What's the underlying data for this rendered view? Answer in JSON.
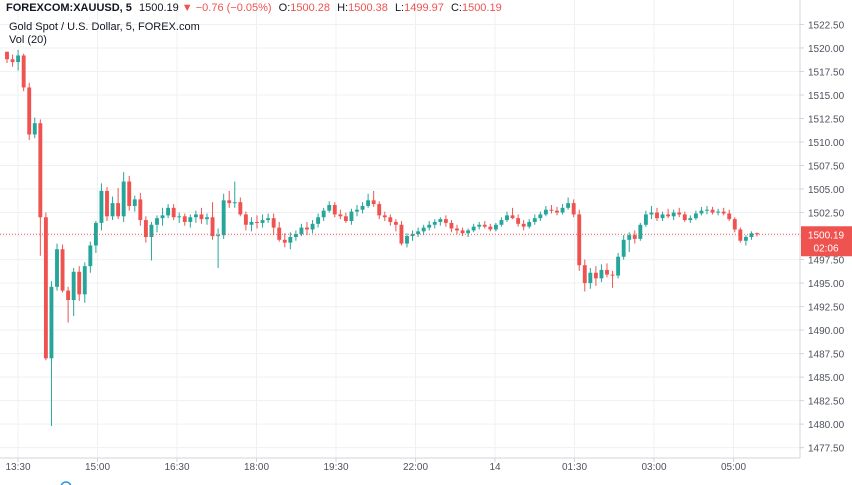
{
  "header": {
    "symbol": "FOREXCOM:XAUUSD, 5",
    "last": "1500.19",
    "change_arrow": "▼",
    "change": "−0.76 (−0.05%)",
    "o_label": "O:",
    "o": "1500.28",
    "h_label": "H:",
    "h": "1500.38",
    "l_label": "L:",
    "l": "1499.97",
    "c_label": "C:",
    "c": "1500.19",
    "title": "Gold Spot / U.S. Dollar, 5, FOREX.com",
    "indicator": "Vol (20)"
  },
  "colors": {
    "up": "#26a69a",
    "down": "#ef5350",
    "grid": "#eef0f3",
    "axis_text": "#50535e",
    "price_line": "#ef5350"
  },
  "chart_data": {
    "type": "candlestick",
    "interval": "5m",
    "grid": true,
    "price_axis_position": "right",
    "ylim": [
      1476.4,
      1525.1
    ],
    "y_ticks": [
      "1522.50",
      "1520.00",
      "1517.50",
      "1515.00",
      "1512.50",
      "1510.00",
      "1507.50",
      "1505.00",
      "1502.50",
      "1500.00",
      "1497.50",
      "1495.00",
      "1492.50",
      "1490.00",
      "1487.50",
      "1485.00",
      "1482.50",
      "1480.00",
      "1477.50"
    ],
    "x_ticks": [
      "13:30",
      "15:00",
      "16:30",
      "18:00",
      "19:30",
      "22:00",
      "14",
      "01:30",
      "03:00",
      "05:00"
    ],
    "last_price_label": "1500.19",
    "countdown_label": "02:06",
    "ohlc": [
      [
        1519.6,
        1519.6,
        1518.4,
        1518.8
      ],
      [
        1518.8,
        1519.3,
        1518.0,
        1518.5
      ],
      [
        1518.5,
        1519.8,
        1517.6,
        1519.2
      ],
      [
        1519.2,
        1519.4,
        1515.4,
        1515.8
      ],
      [
        1515.8,
        1516.3,
        1510.2,
        1510.8
      ],
      [
        1510.8,
        1512.6,
        1510.4,
        1512.0
      ],
      [
        1512.0,
        1512.4,
        1497.9,
        1502.0
      ],
      [
        1502.0,
        1502.5,
        1486.8,
        1487.0
      ],
      [
        1487.0,
        1495.2,
        1479.8,
        1494.6
      ],
      [
        1494.6,
        1499.2,
        1494.2,
        1498.6
      ],
      [
        1498.6,
        1499.1,
        1494.0,
        1494.2
      ],
      [
        1494.2,
        1494.6,
        1490.8,
        1493.2
      ],
      [
        1493.2,
        1496.6,
        1491.5,
        1496.2
      ],
      [
        1496.2,
        1496.8,
        1493.1,
        1493.8
      ],
      [
        1493.8,
        1497.2,
        1492.9,
        1496.8
      ],
      [
        1496.8,
        1499.4,
        1496.1,
        1499.0
      ],
      [
        1499.0,
        1501.6,
        1498.2,
        1501.4
      ],
      [
        1501.4,
        1505.6,
        1500.6,
        1504.8
      ],
      [
        1504.8,
        1505.2,
        1501.6,
        1502.1
      ],
      [
        1502.1,
        1504.2,
        1501.7,
        1503.5
      ],
      [
        1503.5,
        1505.1,
        1501.8,
        1502.1
      ],
      [
        1502.1,
        1506.8,
        1501.5,
        1505.8
      ],
      [
        1505.8,
        1506.4,
        1502.7,
        1503.2
      ],
      [
        1503.2,
        1504.3,
        1502.6,
        1503.9
      ],
      [
        1503.9,
        1504.6,
        1501.1,
        1501.7
      ],
      [
        1501.7,
        1502.1,
        1499.3,
        1499.9
      ],
      [
        1499.9,
        1501.5,
        1497.4,
        1501.2
      ],
      [
        1501.2,
        1502.2,
        1500.4,
        1501.9
      ],
      [
        1501.9,
        1503.0,
        1501.1,
        1502.2
      ],
      [
        1502.2,
        1503.4,
        1501.9,
        1503.0
      ],
      [
        1503.0,
        1503.4,
        1501.7,
        1502.0
      ],
      [
        1502.0,
        1502.5,
        1501.4,
        1502.1
      ],
      [
        1502.1,
        1502.4,
        1501.1,
        1501.5
      ],
      [
        1501.5,
        1502.3,
        1500.9,
        1502.0
      ],
      [
        1502.0,
        1502.7,
        1501.4,
        1502.3
      ],
      [
        1502.3,
        1503.0,
        1501.3,
        1501.8
      ],
      [
        1501.8,
        1502.4,
        1501.2,
        1502.0
      ],
      [
        1502.0,
        1503.6,
        1499.6,
        1500.0
      ],
      [
        1500.0,
        1500.8,
        1496.6,
        1500.1
      ],
      [
        1500.1,
        1504.5,
        1499.7,
        1503.8
      ],
      [
        1503.8,
        1504.8,
        1503.0,
        1503.5
      ],
      [
        1503.5,
        1505.8,
        1503.0,
        1503.6
      ],
      [
        1503.6,
        1504.1,
        1502.1,
        1502.3
      ],
      [
        1502.3,
        1502.6,
        1500.6,
        1501.2
      ],
      [
        1501.2,
        1502.0,
        1500.5,
        1501.5
      ],
      [
        1501.5,
        1502.2,
        1500.8,
        1501.4
      ],
      [
        1501.4,
        1502.3,
        1500.9,
        1501.7
      ],
      [
        1501.7,
        1502.4,
        1501.4,
        1501.9
      ],
      [
        1501.9,
        1502.4,
        1500.1,
        1500.9
      ],
      [
        1500.9,
        1501.5,
        1499.4,
        1499.6
      ],
      [
        1499.6,
        1500.3,
        1498.8,
        1499.3
      ],
      [
        1499.3,
        1500.4,
        1498.6,
        1499.9
      ],
      [
        1499.9,
        1500.6,
        1499.5,
        1500.2
      ],
      [
        1500.2,
        1501.3,
        1500.0,
        1500.9
      ],
      [
        1500.9,
        1501.5,
        1500.1,
        1500.7
      ],
      [
        1500.7,
        1501.7,
        1500.3,
        1501.3
      ],
      [
        1501.3,
        1502.4,
        1500.9,
        1502.0
      ],
      [
        1502.0,
        1503.0,
        1501.6,
        1502.7
      ],
      [
        1502.7,
        1503.7,
        1502.5,
        1503.3
      ],
      [
        1503.3,
        1503.6,
        1502.0,
        1502.3
      ],
      [
        1502.3,
        1502.8,
        1501.8,
        1502.1
      ],
      [
        1502.1,
        1502.5,
        1501.4,
        1501.6
      ],
      [
        1501.6,
        1502.9,
        1501.2,
        1502.6
      ],
      [
        1502.6,
        1503.3,
        1502.1,
        1502.8
      ],
      [
        1502.8,
        1503.6,
        1502.4,
        1503.2
      ],
      [
        1503.2,
        1504.5,
        1503.0,
        1503.8
      ],
      [
        1503.8,
        1504.8,
        1503.1,
        1503.4
      ],
      [
        1503.4,
        1503.7,
        1501.8,
        1502.2
      ],
      [
        1502.2,
        1502.6,
        1501.6,
        1502.0
      ],
      [
        1502.0,
        1502.3,
        1501.1,
        1501.5
      ],
      [
        1501.5,
        1501.8,
        1500.5,
        1501.2
      ],
      [
        1501.2,
        1501.6,
        1499.0,
        1499.2
      ],
      [
        1499.2,
        1500.3,
        1498.8,
        1500.0
      ],
      [
        1500.0,
        1500.6,
        1499.5,
        1500.2
      ],
      [
        1500.2,
        1500.9,
        1499.9,
        1500.5
      ],
      [
        1500.5,
        1501.2,
        1500.1,
        1500.9
      ],
      [
        1500.9,
        1501.6,
        1500.6,
        1501.2
      ],
      [
        1501.2,
        1501.8,
        1500.8,
        1501.5
      ],
      [
        1501.5,
        1502.0,
        1501.1,
        1501.8
      ],
      [
        1501.8,
        1502.2,
        1501.0,
        1501.4
      ],
      [
        1501.4,
        1501.7,
        1500.4,
        1500.8
      ],
      [
        1500.8,
        1501.2,
        1500.2,
        1500.6
      ],
      [
        1500.6,
        1500.9,
        1500.0,
        1500.3
      ],
      [
        1500.3,
        1500.8,
        1499.9,
        1500.6
      ],
      [
        1500.6,
        1501.3,
        1500.4,
        1501.0
      ],
      [
        1501.0,
        1501.5,
        1500.7,
        1501.2
      ],
      [
        1501.2,
        1501.6,
        1500.8,
        1501.0
      ],
      [
        1501.0,
        1501.3,
        1500.5,
        1500.7
      ],
      [
        1500.7,
        1501.4,
        1500.5,
        1501.2
      ],
      [
        1501.2,
        1502.0,
        1501.0,
        1501.7
      ],
      [
        1501.7,
        1502.6,
        1501.5,
        1502.2
      ],
      [
        1502.2,
        1503.0,
        1501.8,
        1501.9
      ],
      [
        1501.9,
        1502.3,
        1501.0,
        1501.3
      ],
      [
        1501.3,
        1501.7,
        1500.6,
        1501.0
      ],
      [
        1501.0,
        1501.8,
        1500.8,
        1501.5
      ],
      [
        1501.5,
        1502.3,
        1501.2,
        1501.9
      ],
      [
        1501.9,
        1502.6,
        1501.6,
        1502.3
      ],
      [
        1502.3,
        1503.2,
        1502.1,
        1502.8
      ],
      [
        1502.8,
        1503.3,
        1502.4,
        1502.7
      ],
      [
        1502.7,
        1503.1,
        1502.2,
        1502.5
      ],
      [
        1502.5,
        1503.4,
        1502.3,
        1503.0
      ],
      [
        1503.0,
        1504.1,
        1502.8,
        1503.5
      ],
      [
        1503.5,
        1503.9,
        1502.0,
        1502.3
      ],
      [
        1502.3,
        1502.8,
        1496.3,
        1496.9
      ],
      [
        1496.9,
        1497.5,
        1494.1,
        1495.0
      ],
      [
        1495.0,
        1496.6,
        1494.4,
        1496.1
      ],
      [
        1496.1,
        1496.8,
        1494.7,
        1495.5
      ],
      [
        1495.5,
        1497.0,
        1495.1,
        1496.4
      ],
      [
        1496.4,
        1497.1,
        1495.6,
        1495.9
      ],
      [
        1495.9,
        1496.3,
        1494.5,
        1495.8
      ],
      [
        1495.8,
        1498.2,
        1495.5,
        1497.8
      ],
      [
        1497.8,
        1500.1,
        1497.5,
        1499.6
      ],
      [
        1499.6,
        1500.4,
        1498.3,
        1500.1
      ],
      [
        1500.1,
        1500.6,
        1499.2,
        1499.7
      ],
      [
        1499.7,
        1501.4,
        1499.5,
        1501.2
      ],
      [
        1501.2,
        1502.7,
        1501.0,
        1502.3
      ],
      [
        1502.3,
        1503.2,
        1501.8,
        1502.5
      ],
      [
        1502.5,
        1503.0,
        1501.6,
        1501.9
      ],
      [
        1501.9,
        1502.6,
        1501.6,
        1502.3
      ],
      [
        1502.3,
        1502.9,
        1501.9,
        1502.1
      ],
      [
        1502.1,
        1502.8,
        1501.7,
        1502.5
      ],
      [
        1502.5,
        1503.0,
        1502.0,
        1502.3
      ],
      [
        1502.3,
        1502.6,
        1501.5,
        1501.7
      ],
      [
        1501.7,
        1502.2,
        1501.4,
        1501.9
      ],
      [
        1501.9,
        1502.7,
        1501.7,
        1502.4
      ],
      [
        1502.4,
        1503.1,
        1502.2,
        1502.7
      ],
      [
        1502.7,
        1503.2,
        1502.3,
        1502.8
      ],
      [
        1502.8,
        1503.1,
        1502.3,
        1502.5
      ],
      [
        1502.5,
        1502.9,
        1502.2,
        1502.6
      ],
      [
        1502.6,
        1503.0,
        1502.2,
        1502.4
      ],
      [
        1502.4,
        1502.8,
        1501.6,
        1501.8
      ],
      [
        1501.8,
        1502.0,
        1500.4,
        1500.7
      ],
      [
        1500.7,
        1500.9,
        1499.3,
        1499.5
      ],
      [
        1499.5,
        1500.1,
        1499.0,
        1499.9
      ],
      [
        1499.9,
        1500.5,
        1499.6,
        1500.3
      ],
      [
        1500.3,
        1500.38,
        1499.97,
        1500.19
      ]
    ]
  }
}
